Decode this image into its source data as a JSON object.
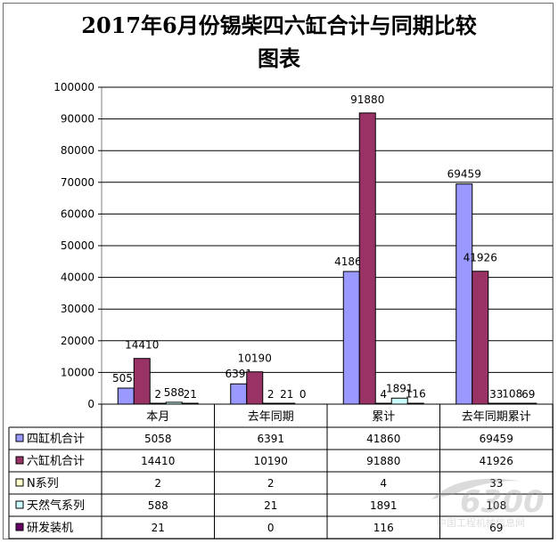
{
  "chart_data": {
    "type": "bar",
    "title_line1": "2017年6月份锡柴四六缸合计与同期比较",
    "title_line2": "图表",
    "categories": [
      "本月",
      "去年同期",
      "累计",
      "去年同期累计"
    ],
    "ylim": [
      0,
      100000
    ],
    "yticks": [
      0,
      10000,
      20000,
      30000,
      40000,
      50000,
      60000,
      70000,
      80000,
      90000,
      100000
    ],
    "grid": true,
    "legend_placement": "data-table-left",
    "series": [
      {
        "name": "四缸机合计",
        "color": "#9999ff",
        "values": [
          5058,
          6391,
          41860,
          69459
        ]
      },
      {
        "name": "六缸机合计",
        "color": "#993366",
        "values": [
          14410,
          10190,
          91880,
          41926
        ]
      },
      {
        "name": "N系列",
        "color": "#ffffcc",
        "values": [
          2,
          2,
          4,
          33
        ]
      },
      {
        "name": "天然气系列",
        "color": "#ccffff",
        "values": [
          588,
          21,
          1891,
          108
        ]
      },
      {
        "name": "研发装机",
        "color": "#660066",
        "values": [
          21,
          0,
          116,
          69
        ]
      }
    ]
  },
  "watermark": {
    "number": "6300",
    "caption": "中国工程机械信息网"
  }
}
